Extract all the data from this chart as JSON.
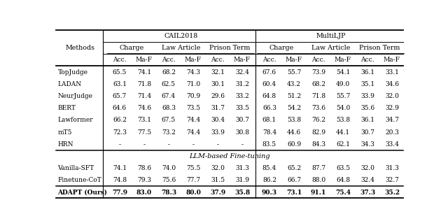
{
  "title_left": "CAIL2018",
  "title_right": "MultiLJP",
  "methods_label": "Methods",
  "rows_main": [
    {
      "name": "TopJudge",
      "vals": [
        "65.5",
        "74.1",
        "68.2",
        "74.3",
        "32.1",
        "32.4",
        "67.6",
        "55.7",
        "73.9",
        "54.1",
        "36.1",
        "33.1"
      ]
    },
    {
      "name": "LADAN",
      "vals": [
        "63.1",
        "71.8",
        "62.5",
        "71.0",
        "30.1",
        "31.2",
        "60.4",
        "43.2",
        "68.2",
        "49.0",
        "35.1",
        "34.6"
      ]
    },
    {
      "name": "NeurJudge",
      "vals": [
        "65.7",
        "71.4",
        "67.4",
        "70.9",
        "29.6",
        "33.2",
        "64.8",
        "51.2",
        "71.8",
        "55.7",
        "33.9",
        "32.0"
      ]
    },
    {
      "name": "BERT",
      "vals": [
        "64.6",
        "74.6",
        "68.3",
        "73.5",
        "31.7",
        "33.5",
        "66.3",
        "54.2",
        "73.6",
        "54.0",
        "35.6",
        "32.9"
      ]
    },
    {
      "name": "Lawformer",
      "vals": [
        "66.2",
        "73.1",
        "67.5",
        "74.4",
        "30.4",
        "30.7",
        "68.1",
        "53.8",
        "76.2",
        "53.8",
        "36.1",
        "34.7"
      ]
    },
    {
      "name": "mT5",
      "vals": [
        "72.3",
        "77.5",
        "73.2",
        "74.4",
        "33.9",
        "30.8",
        "78.4",
        "44.6",
        "82.9",
        "44.1",
        "30.7",
        "20.3"
      ]
    },
    {
      "name": "HRN",
      "vals": [
        "-",
        "-",
        "-",
        "-",
        "-",
        "-",
        "83.5",
        "60.9",
        "84.3",
        "62.1",
        "34.3",
        "33.4"
      ]
    }
  ],
  "separator_label": "LLM-based Fine-tuning",
  "rows2": [
    {
      "name": "Vanilla-SFT",
      "vals": [
        "74.1",
        "78.6",
        "74.0",
        "75.5",
        "32.0",
        "31.3",
        "85.4",
        "65.2",
        "87.7",
        "63.5",
        "32.0",
        "31.3"
      ]
    },
    {
      "name": "Finetune-CoT",
      "vals": [
        "74.8",
        "79.3",
        "75.6",
        "77.7",
        "31.5",
        "31.9",
        "86.2",
        "66.7",
        "88.0",
        "64.8",
        "32.4",
        "32.7"
      ]
    }
  ],
  "final_row": {
    "name": "ADAPT (Ours)",
    "vals": [
      "77.9",
      "83.0",
      "78.3",
      "80.0",
      "37.9",
      "35.8",
      "90.3",
      "73.1",
      "91.1",
      "75.4",
      "37.3",
      "35.2"
    ]
  }
}
